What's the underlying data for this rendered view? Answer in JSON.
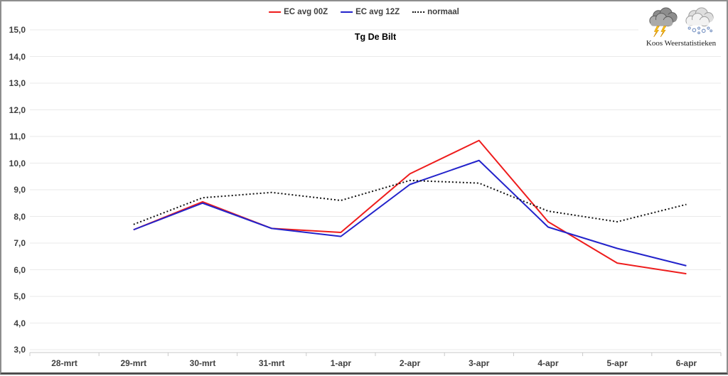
{
  "chart_data": {
    "type": "line",
    "title": "Tg De Bilt",
    "categories": [
      "28-mrt",
      "29-mrt",
      "30-mrt",
      "31-mrt",
      "1-apr",
      "2-apr",
      "3-apr",
      "4-apr",
      "5-apr",
      "6-apr"
    ],
    "series": [
      {
        "name": "EC avg 00Z",
        "color": "#ee1c1c",
        "style": "solid",
        "values": [
          null,
          7.5,
          8.55,
          7.55,
          7.4,
          9.6,
          10.85,
          7.8,
          6.25,
          5.85
        ]
      },
      {
        "name": "EC avg 12Z",
        "color": "#2323cb",
        "style": "solid",
        "values": [
          null,
          7.5,
          8.5,
          7.55,
          7.25,
          9.2,
          10.1,
          7.6,
          6.8,
          6.15
        ]
      },
      {
        "name": "normaal",
        "color": "#111111",
        "style": "dotted",
        "values": [
          null,
          7.7,
          8.7,
          8.9,
          8.6,
          9.35,
          9.25,
          8.2,
          7.8,
          8.45
        ]
      }
    ],
    "ylim": [
      3.0,
      15.0
    ],
    "ytick_step": 1.0,
    "ytick_labels": [
      "15,0",
      "14,0",
      "13,0",
      "12,0",
      "11,0",
      "10,0",
      "9,0",
      "8,0",
      "7,0",
      "6,0",
      "5,0",
      "4,0",
      "3,0"
    ],
    "grid": true,
    "legend_position": "top-center",
    "gridline_color": "#eaeaea",
    "axis_color": "#c9c9c9"
  },
  "branding": {
    "name": "Koos Weerstatistieken",
    "icons": [
      "storm-cloud-lightning-icon",
      "snow-cloud-icon"
    ]
  }
}
